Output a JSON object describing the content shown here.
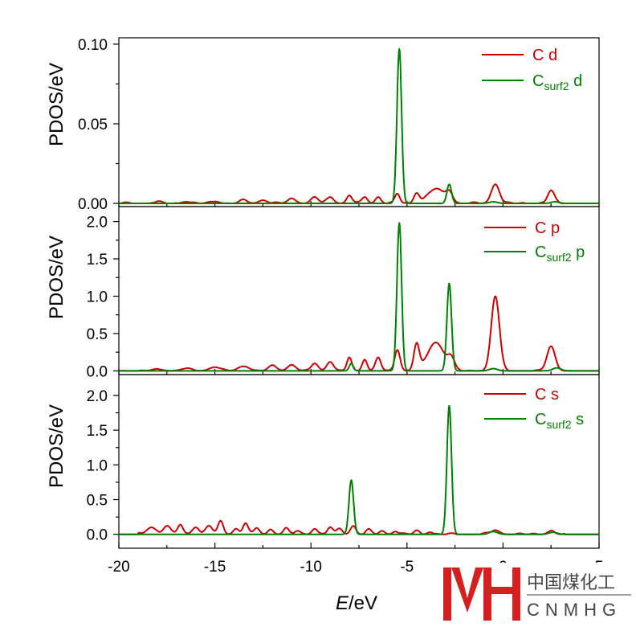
{
  "chart_data": {
    "type": "line",
    "xlabel_italic": "E",
    "xlabel_rest": "/eV",
    "xlim": [
      -20,
      5
    ],
    "xticks": [
      -20,
      -15,
      -10,
      -5,
      0,
      5
    ],
    "colors": {
      "c": "#cc0000",
      "csurf2": "#008000"
    },
    "panels": [
      {
        "id": "d",
        "ylabel": "PDOS/eV",
        "ylim": [
          -0.002,
          0.104
        ],
        "yticks": [
          0.0,
          0.05,
          0.1
        ],
        "ytick_labels": [
          "0.00",
          "0.05",
          "0.10"
        ],
        "legend": [
          {
            "main": "C",
            "sub": "",
            "orbital": "d"
          },
          {
            "main": "C",
            "sub": "surf2",
            "orbital": "d"
          }
        ],
        "series": [
          {
            "name": "C d",
            "color": "#cc0000",
            "base": 0,
            "baseline_noise": 0.0008,
            "peaks": [
              [
                -18,
                0.0008,
                0.3
              ],
              [
                -16.5,
                0.001,
                0.3
              ],
              [
                -15,
                0.0012,
                0.3
              ],
              [
                -13.5,
                0.0018,
                0.3
              ],
              [
                -12.5,
                0.002,
                0.3
              ],
              [
                -11,
                0.003,
                0.3
              ],
              [
                -9.8,
                0.004,
                0.25
              ],
              [
                -9.0,
                0.004,
                0.25
              ],
              [
                -8.0,
                0.005,
                0.2
              ],
              [
                -7.2,
                0.004,
                0.2
              ],
              [
                -6.5,
                0.004,
                0.2
              ],
              [
                -5.5,
                0.006,
                0.18
              ],
              [
                -4.5,
                0.006,
                0.2
              ],
              [
                -3.5,
                0.009,
                0.6
              ],
              [
                -2.8,
                0.006,
                0.25
              ],
              [
                -0.4,
                0.012,
                0.3
              ],
              [
                2.5,
                0.008,
                0.25
              ]
            ]
          },
          {
            "name": "Csurf2 d",
            "color": "#008000",
            "base": 0,
            "baseline_noise": 0,
            "peaks": [
              [
                -5.4,
                0.097,
                0.17
              ],
              [
                -2.8,
                0.012,
                0.17
              ],
              [
                -0.5,
                0.001,
                0.3
              ],
              [
                2.7,
                0.001,
                0.3
              ]
            ]
          }
        ]
      },
      {
        "id": "p",
        "ylabel": "PDOS/eV",
        "ylim": [
          -0.05,
          2.2
        ],
        "yticks": [
          0.0,
          0.5,
          1.0,
          1.5,
          2.0
        ],
        "ytick_labels": [
          "0.0",
          "0.5",
          "1.0",
          "1.5",
          "2.0"
        ],
        "legend": [
          {
            "main": "C",
            "sub": "",
            "orbital": "p"
          },
          {
            "main": "C",
            "sub": "surf2",
            "orbital": "p"
          }
        ],
        "series": [
          {
            "name": "C p",
            "color": "#cc0000",
            "base": 0,
            "baseline_noise": 0.01,
            "peaks": [
              [
                -18,
                0.02,
                0.4
              ],
              [
                -16.5,
                0.03,
                0.4
              ],
              [
                -15,
                0.05,
                0.4
              ],
              [
                -13.5,
                0.06,
                0.4
              ],
              [
                -12,
                0.07,
                0.3
              ],
              [
                -11,
                0.08,
                0.3
              ],
              [
                -9.8,
                0.1,
                0.25
              ],
              [
                -9.0,
                0.12,
                0.25
              ],
              [
                -8.0,
                0.18,
                0.18
              ],
              [
                -7.2,
                0.15,
                0.18
              ],
              [
                -6.5,
                0.18,
                0.2
              ],
              [
                -5.5,
                0.28,
                0.2
              ],
              [
                -4.5,
                0.35,
                0.2
              ],
              [
                -3.5,
                0.38,
                0.6
              ],
              [
                -2.7,
                0.15,
                0.25
              ],
              [
                -0.4,
                1.0,
                0.3
              ],
              [
                2.5,
                0.33,
                0.3
              ]
            ]
          },
          {
            "name": "Csurf2 p",
            "color": "#008000",
            "base": 0,
            "baseline_noise": 0,
            "peaks": [
              [
                -5.4,
                1.98,
                0.17
              ],
              [
                -2.8,
                1.17,
                0.17
              ],
              [
                -7.9,
                0.1,
                0.15
              ],
              [
                -0.5,
                0.03,
                0.3
              ],
              [
                2.8,
                0.04,
                0.3
              ]
            ]
          }
        ]
      },
      {
        "id": "s",
        "ylabel": "PDOS/eV",
        "ylim": [
          -0.2,
          2.3
        ],
        "yticks": [
          0.0,
          0.5,
          1.0,
          1.5,
          2.0
        ],
        "ytick_labels": [
          "0.0",
          "0.5",
          "1.0",
          "1.5",
          "2.0"
        ],
        "legend": [
          {
            "main": "C",
            "sub": "",
            "orbital": "s"
          },
          {
            "main": "C",
            "sub": "surf2",
            "orbital": "s"
          }
        ],
        "series": [
          {
            "name": "C s",
            "color": "#cc0000",
            "base": 0,
            "baseline_noise": 0.02,
            "range_start": -19,
            "peaks": [
              [
                -18.3,
                0.1,
                0.35
              ],
              [
                -17.5,
                0.12,
                0.25
              ],
              [
                -16.8,
                0.14,
                0.2
              ],
              [
                -16,
                0.1,
                0.25
              ],
              [
                -15.3,
                0.12,
                0.25
              ],
              [
                -14.7,
                0.18,
                0.2
              ],
              [
                -13.9,
                0.08,
                0.2
              ],
              [
                -13.4,
                0.16,
                0.2
              ],
              [
                -12.8,
                0.08,
                0.2
              ],
              [
                -12.1,
                0.07,
                0.2
              ],
              [
                -11.3,
                0.08,
                0.2
              ],
              [
                -10.7,
                0.05,
                0.2
              ],
              [
                -9.8,
                0.08,
                0.2
              ],
              [
                -9.0,
                0.1,
                0.2
              ],
              [
                -8.5,
                0.08,
                0.2
              ],
              [
                -7.8,
                0.12,
                0.2
              ],
              [
                -7.0,
                0.06,
                0.2
              ],
              [
                -6.3,
                0.05,
                0.2
              ],
              [
                -5.6,
                0.04,
                0.2
              ],
              [
                -4.5,
                0.05,
                0.2
              ],
              [
                -3.8,
                0.03,
                0.2
              ],
              [
                -0.4,
                0.06,
                0.3
              ],
              [
                2.5,
                0.05,
                0.25
              ]
            ]
          },
          {
            "name": "Csurf2 s",
            "color": "#008000",
            "base": 0,
            "baseline_noise": 0,
            "peaks": [
              [
                -7.9,
                0.78,
                0.17
              ],
              [
                -2.8,
                1.85,
                0.17
              ],
              [
                -0.5,
                0.04,
                0.3
              ],
              [
                2.6,
                0.03,
                0.3
              ]
            ]
          }
        ]
      }
    ]
  },
  "watermark": {
    "cn": "中国煤化工",
    "en": "CNMHG"
  }
}
